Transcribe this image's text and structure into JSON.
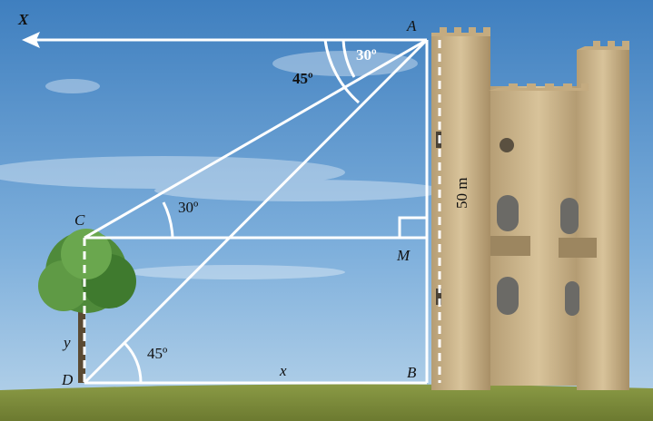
{
  "labels": {
    "X": "X",
    "A": "A",
    "angle_A_30": "30º",
    "angle_A_45": "45º",
    "C": "C",
    "angle_C": "30º",
    "M": "M",
    "height": "50 m",
    "y": "y",
    "D": "D",
    "angle_D": "45º",
    "x": "x",
    "B": "B"
  }
}
